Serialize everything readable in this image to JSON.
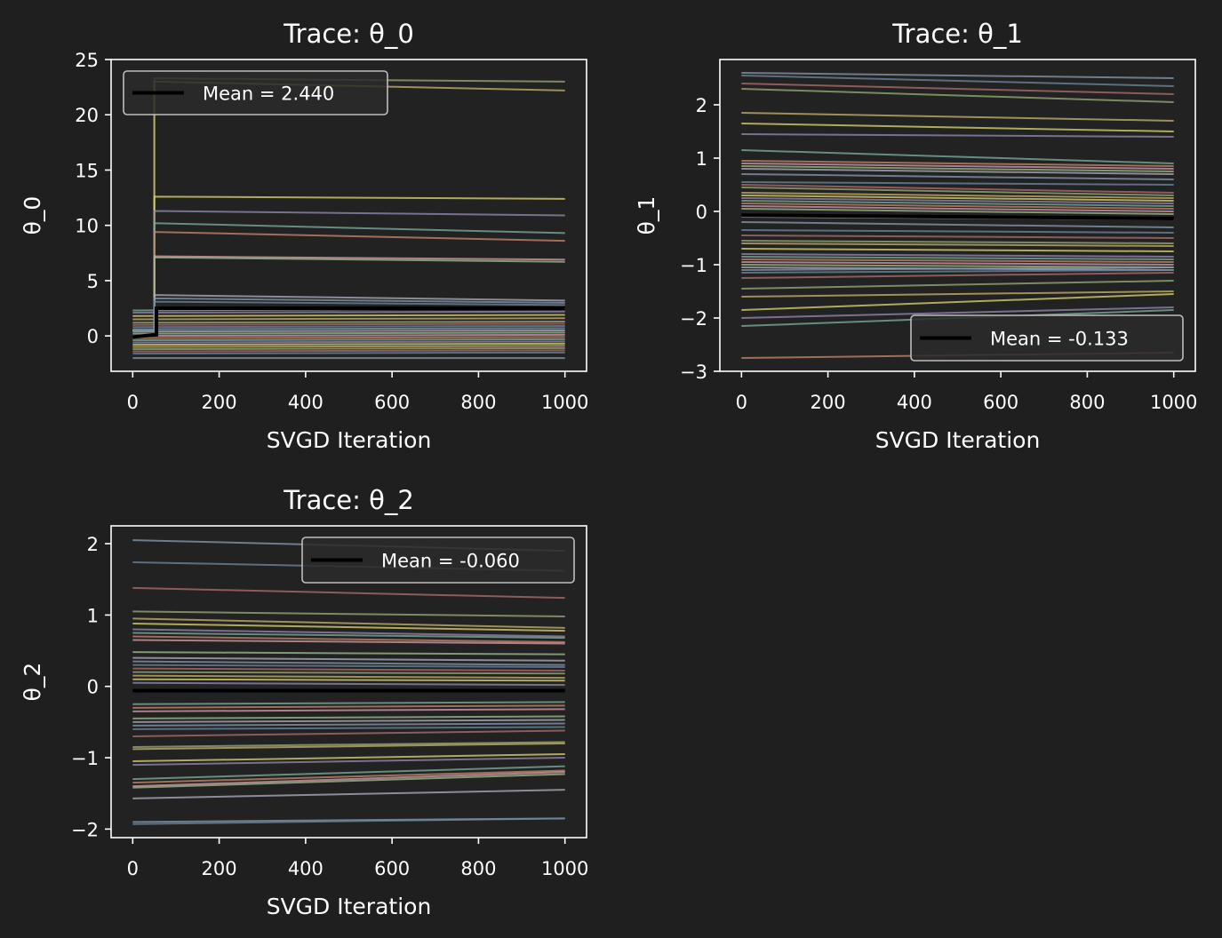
{
  "figure": {
    "background": "#1f1f1f"
  },
  "chart_data": [
    {
      "type": "line",
      "title": "Trace: θ_0",
      "xlabel": "SVGD Iteration",
      "ylabel": "θ_0",
      "xlim": [
        -50,
        1050
      ],
      "ylim": [
        -3.2,
        25
      ],
      "xticks": [
        0,
        200,
        400,
        600,
        800,
        1000
      ],
      "xtick_labels": [
        "0",
        "200",
        "400",
        "600",
        "800",
        "1000"
      ],
      "yticks": [
        0,
        5,
        10,
        15,
        20,
        25
      ],
      "ytick_labels": [
        "0",
        "5",
        "10",
        "15",
        "20",
        "25"
      ],
      "legend": {
        "label": "Mean = 2.440",
        "location": "upper left"
      },
      "grid": false,
      "particle_traces": {
        "x": [
          0,
          1000
        ],
        "start_values": [
          -2.0,
          -1.6,
          -1.4,
          -1.2,
          -1.0,
          -0.8,
          -0.6,
          -0.4,
          -0.2,
          0.0,
          0.2,
          0.4,
          0.6,
          0.8,
          1.0,
          1.2,
          1.5,
          1.8,
          2.1,
          2.3
        ],
        "end_values": [
          -2.0,
          -1.5,
          -1.3,
          -1.1,
          -0.9,
          -0.7,
          -0.5,
          -0.3,
          -0.1,
          0.1,
          0.3,
          0.5,
          0.7,
          0.9,
          1.1,
          1.3,
          1.6,
          1.9,
          2.2,
          2.5
        ],
        "jumped_particles": [
          {
            "jump_at": 50,
            "after_start": 23.3,
            "end": 23.0
          },
          {
            "jump_at": 50,
            "after_start": 23.0,
            "end": 22.2
          },
          {
            "jump_at": 50,
            "after_start": 12.6,
            "end": 12.4
          },
          {
            "jump_at": 50,
            "after_start": 11.3,
            "end": 10.9
          },
          {
            "jump_at": 50,
            "after_start": 10.2,
            "end": 9.3
          },
          {
            "jump_at": 50,
            "after_start": 9.4,
            "end": 8.6
          },
          {
            "jump_at": 50,
            "after_start": 7.2,
            "end": 6.9
          },
          {
            "jump_at": 50,
            "after_start": 7.1,
            "end": 6.7
          },
          {
            "jump_at": 50,
            "after_start": 3.7,
            "end": 3.2
          },
          {
            "jump_at": 50,
            "after_start": 3.4,
            "end": 3.0
          },
          {
            "jump_at": 50,
            "after_start": 3.1,
            "end": 2.8
          }
        ]
      },
      "mean_trace": {
        "x": [
          0,
          50,
          50,
          55,
          55,
          1000
        ],
        "y": [
          -0.1,
          0.1,
          0.1,
          0.1,
          2.5,
          2.5
        ]
      }
    },
    {
      "type": "line",
      "title": "Trace: θ_1",
      "xlabel": "SVGD Iteration",
      "ylabel": "θ_1",
      "xlim": [
        -50,
        1050
      ],
      "ylim": [
        -3,
        2.85
      ],
      "xticks": [
        0,
        200,
        400,
        600,
        800,
        1000
      ],
      "xtick_labels": [
        "0",
        "200",
        "400",
        "600",
        "800",
        "1000"
      ],
      "yticks": [
        -3,
        -2,
        -1,
        0,
        1,
        2
      ],
      "ytick_labels": [
        "−3",
        "−2",
        "−1",
        "0",
        "1",
        "2"
      ],
      "legend": {
        "label": "Mean = -0.133",
        "location": "lower right"
      },
      "grid": false,
      "particle_traces": {
        "x": [
          0,
          1000
        ],
        "start_values": [
          2.6,
          2.55,
          2.4,
          2.3,
          1.85,
          1.65,
          1.45,
          1.15,
          0.95,
          0.9,
          0.85,
          0.8,
          0.7,
          0.55,
          0.5,
          0.45,
          0.35,
          0.3,
          0.25,
          0.2,
          0.15,
          0.1,
          0.05,
          -0.1,
          -0.2,
          -0.35,
          -0.45,
          -0.55,
          -0.6,
          -0.7,
          -0.8,
          -0.85,
          -0.9,
          -0.95,
          -1.0,
          -1.05,
          -1.1,
          -1.15,
          -1.25,
          -1.45,
          -1.6,
          -1.85,
          -2.0,
          -2.15,
          -2.75
        ],
        "end_values": [
          2.5,
          2.35,
          2.2,
          2.05,
          1.7,
          1.5,
          1.4,
          0.9,
          0.85,
          0.8,
          0.75,
          0.7,
          0.6,
          0.5,
          0.35,
          0.3,
          0.25,
          0.2,
          0.15,
          0.1,
          0.05,
          0.0,
          -0.05,
          -0.15,
          -0.3,
          -0.4,
          -0.5,
          -0.6,
          -0.65,
          -0.75,
          -0.85,
          -0.9,
          -0.95,
          -1.0,
          -1.05,
          -1.1,
          -1.05,
          -1.1,
          -1.15,
          -1.3,
          -1.5,
          -1.55,
          -1.8,
          -1.85,
          -2.65
        ]
      },
      "mean_trace": {
        "x": [
          0,
          1000
        ],
        "y": [
          -0.07,
          -0.133
        ]
      }
    },
    {
      "type": "line",
      "title": "Trace: θ_2",
      "xlabel": "SVGD Iteration",
      "ylabel": "θ_2",
      "xlim": [
        -50,
        1050
      ],
      "ylim": [
        -2.12,
        2.25
      ],
      "xticks": [
        0,
        200,
        400,
        600,
        800,
        1000
      ],
      "xtick_labels": [
        "0",
        "200",
        "400",
        "600",
        "800",
        "1000"
      ],
      "yticks": [
        -2,
        -1,
        0,
        1,
        2
      ],
      "ytick_labels": [
        "−2",
        "−1",
        "0",
        "1",
        "2"
      ],
      "legend": {
        "label": "Mean = -0.060",
        "location": "upper right"
      },
      "grid": false,
      "particle_traces": {
        "x": [
          0,
          1000
        ],
        "start_values": [
          2.05,
          1.74,
          1.38,
          1.05,
          0.95,
          0.88,
          0.8,
          0.75,
          0.7,
          0.65,
          0.48,
          0.4,
          0.35,
          0.3,
          0.25,
          0.2,
          0.15,
          0.1,
          0.05,
          -0.25,
          -0.3,
          -0.35,
          -0.45,
          -0.5,
          -0.55,
          -0.6,
          -0.7,
          -0.85,
          -0.88,
          -1.05,
          -1.1,
          -1.3,
          -1.35,
          -1.4,
          -1.42,
          -1.57,
          -1.9,
          -1.93
        ],
        "end_values": [
          1.9,
          1.62,
          1.24,
          0.98,
          0.82,
          0.78,
          0.7,
          0.68,
          0.62,
          0.6,
          0.45,
          0.36,
          0.3,
          0.27,
          0.22,
          0.18,
          0.12,
          0.08,
          0.02,
          -0.22,
          -0.27,
          -0.32,
          -0.42,
          -0.47,
          -0.52,
          -0.57,
          -0.62,
          -0.78,
          -0.8,
          -0.95,
          -1.0,
          -1.12,
          -1.18,
          -1.2,
          -1.23,
          -1.45,
          -1.85,
          -1.85
        ]
      },
      "mean_trace": {
        "x": [
          0,
          1000
        ],
        "y": [
          -0.06,
          -0.06
        ]
      }
    }
  ],
  "colors": {
    "figure_bg": "#1f1f1f",
    "axes_bg": "#222222",
    "spine": "#ffffff",
    "mean_line": "#000000",
    "palette": [
      "#8a9bb0",
      "#6f8aa0",
      "#b07070",
      "#9aae7a",
      "#c9b56b",
      "#e0d870",
      "#9a8ab5",
      "#7fb0a0",
      "#c98a6a",
      "#d9a0b0",
      "#a0c090",
      "#b0b0c0"
    ]
  }
}
